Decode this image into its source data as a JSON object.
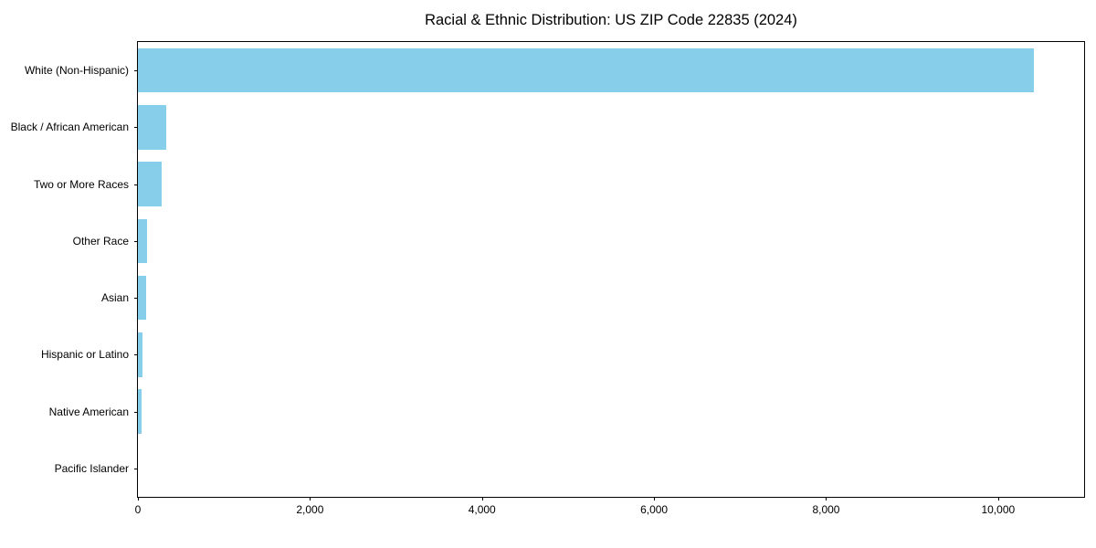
{
  "chart_data": {
    "type": "bar",
    "orientation": "horizontal",
    "title": "Racial & Ethnic Distribution: US ZIP Code 22835 (2024)",
    "categories": [
      "White (Non-Hispanic)",
      "Black / African American",
      "Two or More Races",
      "Other Race",
      "Asian",
      "Hispanic or Latino",
      "Native American",
      "Pacific Islander"
    ],
    "values": [
      10420,
      330,
      280,
      110,
      95,
      50,
      38,
      0
    ],
    "xlabel": "",
    "ylabel": "",
    "xlim": [
      0,
      11000
    ],
    "xticks": [
      {
        "value": 0,
        "label": "0"
      },
      {
        "value": 2000,
        "label": "2,000"
      },
      {
        "value": 4000,
        "label": "4,000"
      },
      {
        "value": 6000,
        "label": "6,000"
      },
      {
        "value": 8000,
        "label": "8,000"
      },
      {
        "value": 10000,
        "label": "10,000"
      }
    ],
    "bar_color": "#87CEEB",
    "grid": false,
    "legend": "none"
  }
}
